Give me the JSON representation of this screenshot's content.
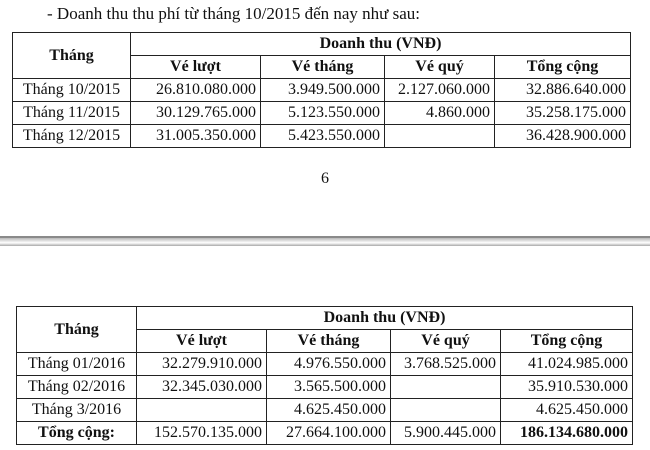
{
  "intro": "- Doanh thu thu phí từ tháng 10/2015 đến nay như sau:",
  "page_number": "6",
  "table1": {
    "header_month": "Tháng",
    "header_group": "Doanh thu (VNĐ)",
    "columns": [
      "Vé lượt",
      "Vé tháng",
      "Vé quý",
      "Tổng cộng"
    ],
    "rows": [
      {
        "month": "Tháng 10/2015",
        "cells": [
          "26.810.080.000",
          "3.949.500.000",
          "2.127.060.000",
          "32.886.640.000"
        ]
      },
      {
        "month": "Tháng 11/2015",
        "cells": [
          "30.129.765.000",
          "5.123.550.000",
          "4.860.000",
          "35.258.175.000"
        ]
      },
      {
        "month": "Tháng 12/2015",
        "cells": [
          "31.005.350.000",
          "5.423.550.000",
          "",
          "36.428.900.000"
        ]
      }
    ]
  },
  "table2": {
    "header_month": "Tháng",
    "header_group": "Doanh thu (VNĐ)",
    "columns": [
      "Vé lượt",
      "Vé tháng",
      "Vé quý",
      "Tổng cộng"
    ],
    "rows": [
      {
        "month": "Tháng 01/2016",
        "cells": [
          "32.279.910.000",
          "4.976.550.000",
          "3.768.525.000",
          "41.024.985.000"
        ]
      },
      {
        "month": "Tháng 02/2016",
        "cells": [
          "32.345.030.000",
          "3.565.500.000",
          "",
          "35.910.530.000"
        ]
      },
      {
        "month": "Tháng 3/2016",
        "cells": [
          "",
          "4.625.450.000",
          "",
          "4.625.450.000"
        ]
      }
    ],
    "total": {
      "label": "Tổng cộng:",
      "cells": [
        "152.570.135.000",
        "27.664.100.000",
        "5.900.445.000",
        "186.134.680.000"
      ]
    }
  }
}
